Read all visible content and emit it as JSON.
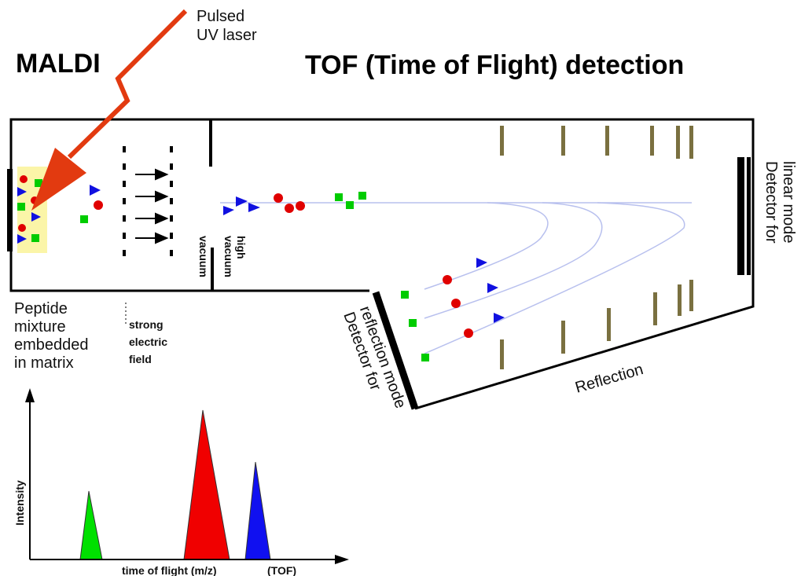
{
  "header": {
    "laser_label": [
      "Pulsed",
      "UV laser"
    ],
    "left_title": "MALDI",
    "right_title": "TOF (Time of Flight) detection"
  },
  "labels": {
    "linear_detector": [
      "Detector for",
      "linear mode"
    ],
    "sample": [
      "Peptide",
      "mixture",
      "embedded",
      "in matrix"
    ],
    "field": [
      "strong",
      "electric",
      "field"
    ],
    "high_vacuum": [
      "high",
      "vacuum"
    ],
    "vacuum": "vacuum",
    "reflection_detector": [
      "Detector for",
      "reflection mode"
    ],
    "reflection": "Reflection"
  },
  "spectrum": {
    "y_label": "Intensity",
    "x_label": "time of flight (m/z)",
    "x_label_suffix": "(TOF)"
  }
}
